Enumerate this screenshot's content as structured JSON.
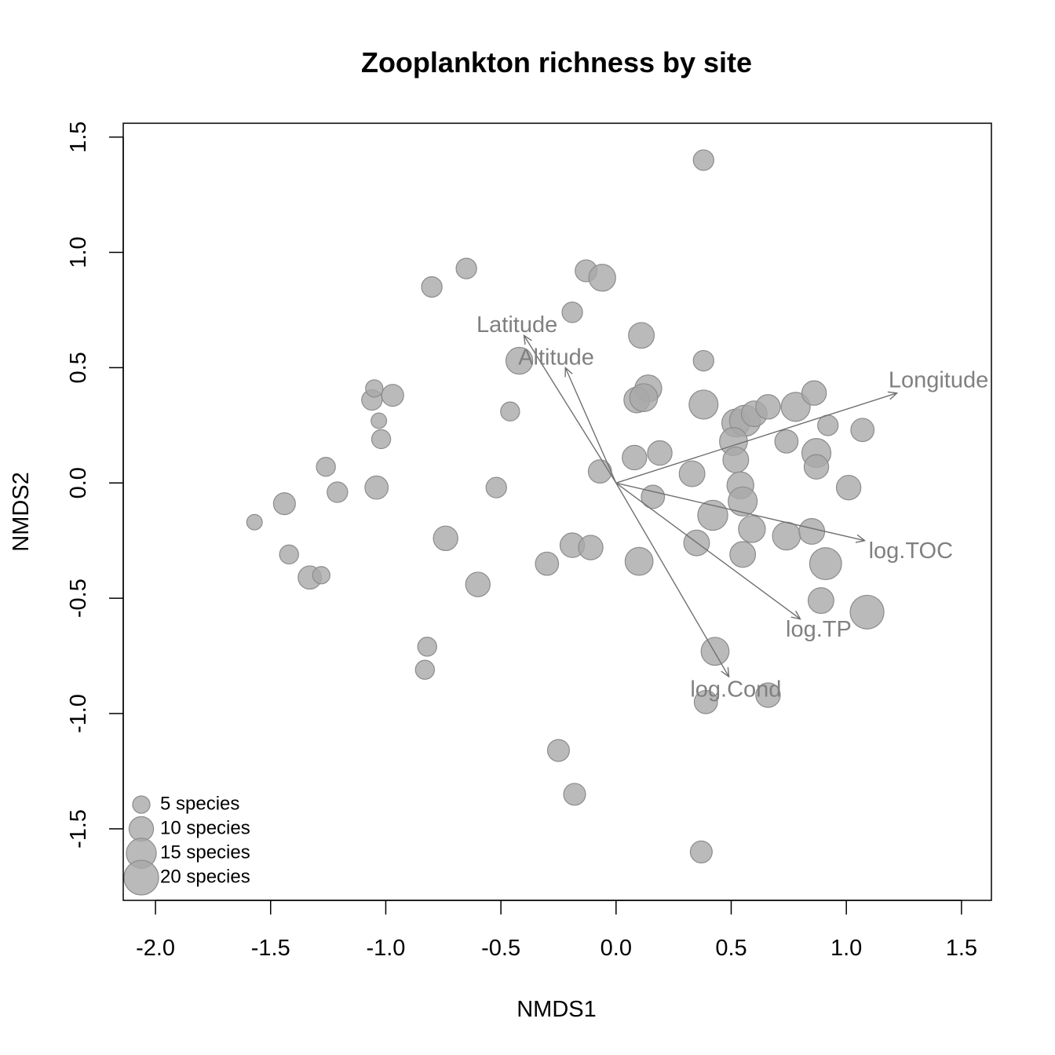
{
  "chart_data": {
    "type": "scatter",
    "title": "Zooplankton richness by site",
    "xlabel": "NMDS1",
    "ylabel": "NMDS2",
    "xlim": [
      -2.14,
      1.63
    ],
    "ylim": [
      -1.81,
      1.56
    ],
    "x_ticks": [
      {
        "value": -2.0,
        "label": "-2.0"
      },
      {
        "value": -1.5,
        "label": "-1.5"
      },
      {
        "value": -1.0,
        "label": "-1.0"
      },
      {
        "value": -0.5,
        "label": "-0.5"
      },
      {
        "value": 0.0,
        "label": "0.0"
      },
      {
        "value": 0.5,
        "label": "0.5"
      },
      {
        "value": 1.0,
        "label": "1.0"
      },
      {
        "value": 1.5,
        "label": "1.5"
      }
    ],
    "y_ticks": [
      {
        "value": -1.5,
        "label": "-1.5"
      },
      {
        "value": -1.0,
        "label": "-1.0"
      },
      {
        "value": -0.5,
        "label": "-0.5"
      },
      {
        "value": 0.0,
        "label": "0.0"
      },
      {
        "value": 0.5,
        "label": "0.5"
      },
      {
        "value": 1.0,
        "label": "1.0"
      },
      {
        "value": 1.5,
        "label": "1.5"
      }
    ],
    "grid": false,
    "point_color": "#a9a9a9",
    "point_edge_color": "#8c8c8c",
    "arrow_color": "#707070",
    "label_color": "#808080",
    "points": [
      {
        "x": 0.38,
        "y": 1.4,
        "richness": 7
      },
      {
        "x": -0.65,
        "y": 0.93,
        "richness": 7
      },
      {
        "x": -0.8,
        "y": 0.85,
        "richness": 7
      },
      {
        "x": -0.13,
        "y": 0.92,
        "richness": 8
      },
      {
        "x": -0.06,
        "y": 0.89,
        "richness": 12
      },
      {
        "x": -0.19,
        "y": 0.74,
        "richness": 7
      },
      {
        "x": 0.11,
        "y": 0.64,
        "richness": 11
      },
      {
        "x": -0.42,
        "y": 0.53,
        "richness": 12
      },
      {
        "x": 0.38,
        "y": 0.53,
        "richness": 7
      },
      {
        "x": 0.14,
        "y": 0.41,
        "richness": 12
      },
      {
        "x": 0.09,
        "y": 0.36,
        "richness": 11
      },
      {
        "x": 0.12,
        "y": 0.37,
        "richness": 13
      },
      {
        "x": 0.38,
        "y": 0.34,
        "richness": 14
      },
      {
        "x": 0.52,
        "y": 0.26,
        "richness": 13
      },
      {
        "x": 0.56,
        "y": 0.27,
        "richness": 16
      },
      {
        "x": 0.6,
        "y": 0.3,
        "richness": 11
      },
      {
        "x": 0.66,
        "y": 0.33,
        "richness": 10
      },
      {
        "x": 0.78,
        "y": 0.33,
        "richness": 14
      },
      {
        "x": 0.86,
        "y": 0.39,
        "richness": 10
      },
      {
        "x": 0.92,
        "y": 0.25,
        "richness": 7
      },
      {
        "x": 1.07,
        "y": 0.23,
        "richness": 9
      },
      {
        "x": 0.51,
        "y": 0.18,
        "richness": 13
      },
      {
        "x": 0.74,
        "y": 0.18,
        "richness": 9
      },
      {
        "x": 0.87,
        "y": 0.13,
        "richness": 14
      },
      {
        "x": 0.87,
        "y": 0.07,
        "richness": 10
      },
      {
        "x": 0.08,
        "y": 0.11,
        "richness": 10
      },
      {
        "x": 0.19,
        "y": 0.13,
        "richness": 10
      },
      {
        "x": 0.52,
        "y": 0.1,
        "richness": 11
      },
      {
        "x": 0.33,
        "y": 0.04,
        "richness": 11
      },
      {
        "x": -0.07,
        "y": 0.05,
        "richness": 9
      },
      {
        "x": 0.54,
        "y": -0.01,
        "richness": 12
      },
      {
        "x": 0.55,
        "y": -0.08,
        "richness": 14
      },
      {
        "x": 1.01,
        "y": -0.02,
        "richness": 10
      },
      {
        "x": 0.16,
        "y": -0.06,
        "richness": 9
      },
      {
        "x": 0.42,
        "y": -0.14,
        "richness": 15
      },
      {
        "x": 0.59,
        "y": -0.2,
        "richness": 12
      },
      {
        "x": 0.74,
        "y": -0.23,
        "richness": 13
      },
      {
        "x": 0.85,
        "y": -0.21,
        "richness": 11
      },
      {
        "x": 0.35,
        "y": -0.26,
        "richness": 11
      },
      {
        "x": 0.55,
        "y": -0.31,
        "richness": 11
      },
      {
        "x": 0.1,
        "y": -0.34,
        "richness": 13
      },
      {
        "x": 0.91,
        "y": -0.35,
        "richness": 17
      },
      {
        "x": -0.19,
        "y": -0.27,
        "richness": 10
      },
      {
        "x": -0.11,
        "y": -0.28,
        "richness": 10
      },
      {
        "x": -0.3,
        "y": -0.35,
        "richness": 9
      },
      {
        "x": 0.89,
        "y": -0.51,
        "richness": 11
      },
      {
        "x": 1.09,
        "y": -0.56,
        "richness": 19
      },
      {
        "x": 0.43,
        "y": -0.73,
        "richness": 13
      },
      {
        "x": 0.39,
        "y": -0.95,
        "richness": 9
      },
      {
        "x": 0.66,
        "y": -0.92,
        "richness": 10
      },
      {
        "x": -0.25,
        "y": -1.16,
        "richness": 8
      },
      {
        "x": -0.18,
        "y": -1.35,
        "richness": 8
      },
      {
        "x": 0.37,
        "y": -1.6,
        "richness": 8
      },
      {
        "x": -0.74,
        "y": -0.24,
        "richness": 10
      },
      {
        "x": -0.6,
        "y": -0.44,
        "richness": 10
      },
      {
        "x": -0.52,
        "y": -0.02,
        "richness": 7
      },
      {
        "x": -0.46,
        "y": 0.31,
        "richness": 6
      },
      {
        "x": -0.82,
        "y": -0.71,
        "richness": 6
      },
      {
        "x": -0.83,
        "y": -0.81,
        "richness": 6
      },
      {
        "x": -0.97,
        "y": 0.38,
        "richness": 8
      },
      {
        "x": -1.06,
        "y": 0.36,
        "richness": 7
      },
      {
        "x": -1.05,
        "y": 0.41,
        "richness": 5
      },
      {
        "x": -1.03,
        "y": 0.27,
        "richness": 4
      },
      {
        "x": -1.02,
        "y": 0.19,
        "richness": 6
      },
      {
        "x": -1.04,
        "y": -0.02,
        "richness": 9
      },
      {
        "x": -1.26,
        "y": 0.07,
        "richness": 6
      },
      {
        "x": -1.21,
        "y": -0.04,
        "richness": 7
      },
      {
        "x": -1.44,
        "y": -0.09,
        "richness": 8
      },
      {
        "x": -1.57,
        "y": -0.17,
        "richness": 4
      },
      {
        "x": -1.42,
        "y": -0.31,
        "richness": 6
      },
      {
        "x": -1.33,
        "y": -0.41,
        "richness": 9
      },
      {
        "x": -1.28,
        "y": -0.4,
        "richness": 5
      }
    ],
    "vectors": [
      {
        "name": "Latitude",
        "x": -0.4,
        "y": 0.64,
        "label_x": -0.43,
        "label_y": 0.68
      },
      {
        "name": "Altitude",
        "x": -0.22,
        "y": 0.5,
        "label_x": -0.26,
        "label_y": 0.54
      },
      {
        "name": "Longitude",
        "x": 1.22,
        "y": 0.39,
        "label_x": 1.4,
        "label_y": 0.44
      },
      {
        "name": "log.TOC",
        "x": 1.08,
        "y": -0.25,
        "label_x": 1.28,
        "label_y": -0.3
      },
      {
        "name": "log.TP",
        "x": 0.8,
        "y": -0.59,
        "label_x": 0.88,
        "label_y": -0.64
      },
      {
        "name": "log.Cond",
        "x": 0.49,
        "y": -0.84,
        "label_x": 0.52,
        "label_y": -0.9
      }
    ],
    "legend": {
      "placement": "bottom-left",
      "entries": [
        {
          "label": "5 species",
          "richness": 5
        },
        {
          "label": "10 species",
          "richness": 10
        },
        {
          "label": "15 species",
          "richness": 15
        },
        {
          "label": "20 species",
          "richness": 20
        }
      ]
    }
  }
}
